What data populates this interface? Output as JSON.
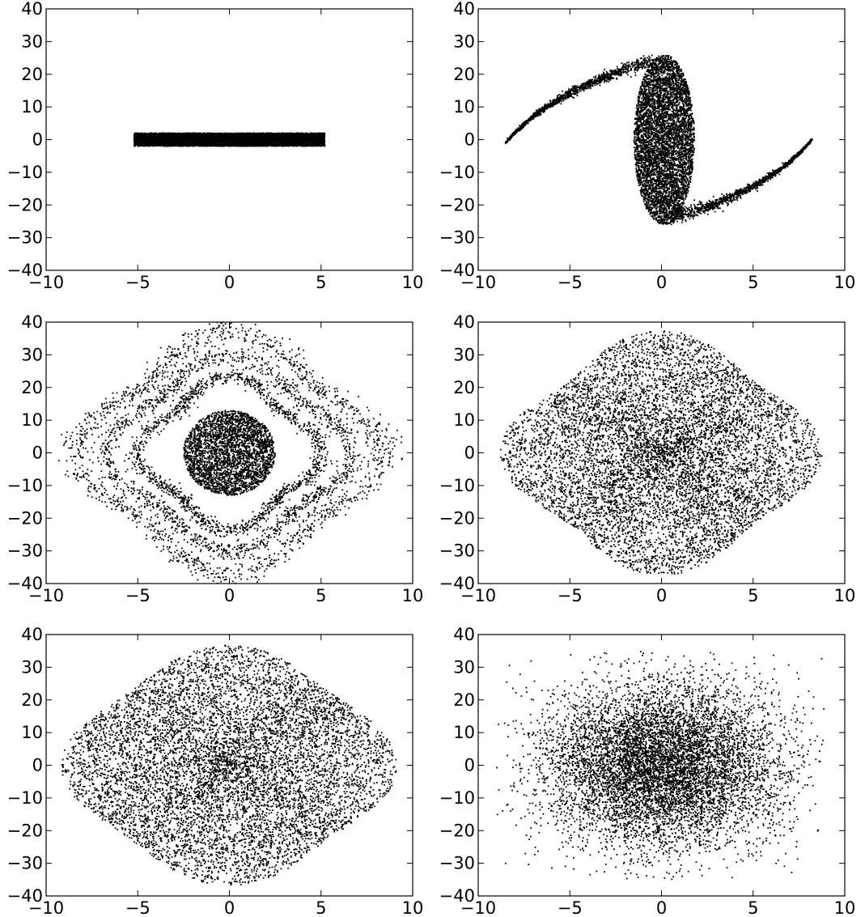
{
  "chart_data": [
    {
      "type": "scatter",
      "panel": "top-left",
      "title": "",
      "xlabel": "",
      "ylabel": "",
      "xlim": [
        -10,
        10
      ],
      "ylim": [
        -40,
        40
      ],
      "xticks": [
        -10,
        -5,
        0,
        5,
        10
      ],
      "yticks": [
        -40,
        -30,
        -20,
        10,
        0,
        -10,
        20,
        30,
        40
      ],
      "x_tick_labels": [
        "−10",
        "−5",
        "0",
        "5",
        "10"
      ],
      "y_tick_labels": [
        "40",
        "30",
        "20",
        "10",
        "0",
        "−10",
        "−20",
        "−30",
        "−40"
      ],
      "grid": false,
      "legend": "none",
      "color": "#000000",
      "distribution": "uniform band",
      "x_range": [
        -5.2,
        5.2
      ],
      "y_range": [
        -2,
        2
      ],
      "n_points": 9000
    },
    {
      "type": "scatter",
      "panel": "top-right",
      "title": "",
      "xlabel": "",
      "ylabel": "",
      "xlim": [
        -10,
        10
      ],
      "ylim": [
        -40,
        40
      ],
      "x_tick_labels": [
        "−10",
        "−5",
        "0",
        "5",
        "10"
      ],
      "y_tick_labels": [
        "40",
        "30",
        "20",
        "10",
        "0",
        "−10",
        "−20",
        "−30",
        "−40"
      ],
      "grid": false,
      "legend": "none",
      "color": "#000000",
      "distribution": "dense core with two spiral arms",
      "core_x_range": [
        -1.5,
        1.8
      ],
      "core_y_range": [
        -26,
        26
      ],
      "arm_1_endpoints": [
        [
          -0.5,
          24
        ],
        [
          -8.5,
          -1
        ]
      ],
      "arm_2_endpoints": [
        [
          0.5,
          -24
        ],
        [
          8.2,
          0
        ]
      ],
      "n_points": 8000
    },
    {
      "type": "scatter",
      "panel": "middle-left",
      "title": "",
      "xlabel": "",
      "ylabel": "",
      "xlim": [
        -10,
        10
      ],
      "ylim": [
        -40,
        40
      ],
      "x_tick_labels": [
        "−10",
        "−5",
        "0",
        "5",
        "10"
      ],
      "y_tick_labels": [
        "40",
        "30",
        "20",
        "10",
        "0",
        "−10",
        "−20",
        "−30",
        "−40"
      ],
      "grid": false,
      "legend": "none",
      "color": "#000000",
      "distribution": "dense core with concentric rings",
      "core_radius": [
        2.5,
        13
      ],
      "ring_radii": [
        [
          4.5,
          21
        ],
        [
          6,
          27
        ],
        [
          7.5,
          33
        ]
      ],
      "n_points": 7000
    },
    {
      "type": "scatter",
      "panel": "middle-right",
      "title": "",
      "xlabel": "",
      "ylabel": "",
      "xlim": [
        -10,
        10
      ],
      "ylim": [
        -40,
        40
      ],
      "x_tick_labels": [
        "−10",
        "−5",
        "0",
        "5",
        "10"
      ],
      "y_tick_labels": [
        "40",
        "30",
        "20",
        "10",
        "0",
        "−10",
        "−20",
        "−30",
        "−40"
      ],
      "grid": false,
      "legend": "none",
      "color": "#000000",
      "distribution": "filled diamond-shaped blob with faint outer rings",
      "extent": [
        8,
        34
      ],
      "n_points": 8000
    },
    {
      "type": "scatter",
      "panel": "bottom-left",
      "title": "",
      "xlabel": "",
      "ylabel": "",
      "xlim": [
        -10,
        10
      ],
      "ylim": [
        -40,
        40
      ],
      "x_tick_labels": [
        "−10",
        "−5",
        "0",
        "5",
        "10"
      ],
      "y_tick_labels": [
        "40",
        "30",
        "20",
        "10",
        "0",
        "−10",
        "−20",
        "−30",
        "−40"
      ],
      "grid": false,
      "legend": "none",
      "color": "#000000",
      "distribution": "filled diamond-shaped blob",
      "extent": [
        8.5,
        34
      ],
      "n_points": 8000
    },
    {
      "type": "scatter",
      "panel": "bottom-right",
      "title": "",
      "xlabel": "",
      "ylabel": "",
      "xlim": [
        -10,
        10
      ],
      "ylim": [
        -40,
        40
      ],
      "x_tick_labels": [
        "−10",
        "−5",
        "0",
        "5",
        "10"
      ],
      "y_tick_labels": [
        "40",
        "30",
        "20",
        "10",
        "0",
        "−10",
        "−20",
        "−30",
        "−40"
      ],
      "grid": false,
      "legend": "none",
      "color": "#000000",
      "distribution": "diffuse gaussian-like cloud",
      "extent": [
        9,
        35
      ],
      "n_points": 8000
    }
  ]
}
